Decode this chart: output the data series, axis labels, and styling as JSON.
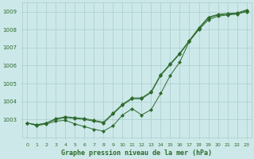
{
  "x": [
    0,
    1,
    2,
    3,
    4,
    5,
    6,
    7,
    8,
    9,
    10,
    11,
    12,
    13,
    14,
    15,
    16,
    17,
    18,
    19,
    20,
    21,
    22,
    23
  ],
  "line1": [
    1002.8,
    1002.7,
    1002.8,
    1003.0,
    1003.1,
    1003.05,
    1003.0,
    1002.9,
    1002.8,
    1003.3,
    1003.8,
    1004.15,
    1004.15,
    1004.5,
    1005.45,
    1006.05,
    1006.65,
    1007.35,
    1008.05,
    1008.65,
    1008.82,
    1008.87,
    1008.9,
    1009.05
  ],
  "line2": [
    1002.8,
    1002.7,
    1002.8,
    1003.05,
    1003.15,
    1003.1,
    1003.05,
    1002.95,
    1002.85,
    1003.35,
    1003.85,
    1004.2,
    1004.2,
    1004.55,
    1005.5,
    1006.1,
    1006.7,
    1007.4,
    1008.1,
    1008.7,
    1008.85,
    1008.9,
    1008.93,
    1009.1
  ],
  "line3": [
    1002.8,
    1002.65,
    1002.75,
    1002.9,
    1002.95,
    1002.75,
    1002.6,
    1002.45,
    1002.35,
    1002.65,
    1003.25,
    1003.6,
    1003.25,
    1003.55,
    1004.45,
    1005.45,
    1006.2,
    1007.35,
    1008.0,
    1008.55,
    1008.75,
    1008.82,
    1008.87,
    1009.0
  ],
  "title": "Graphe pression niveau de la mer (hPa)",
  "background_color": "#cce8e8",
  "grid_color": "#aacece",
  "line_color": "#2d6a2d",
  "text_color": "#2d6a2d",
  "ylim_min": 1002.0,
  "ylim_max": 1009.5,
  "yticks": [
    1003,
    1004,
    1005,
    1006,
    1007,
    1008,
    1009
  ],
  "xticks": [
    0,
    1,
    2,
    3,
    4,
    5,
    6,
    7,
    8,
    9,
    10,
    11,
    12,
    13,
    14,
    15,
    16,
    17,
    18,
    19,
    20,
    21,
    22,
    23
  ],
  "marker": "D",
  "markersize": 2.0,
  "linewidth": 0.7
}
